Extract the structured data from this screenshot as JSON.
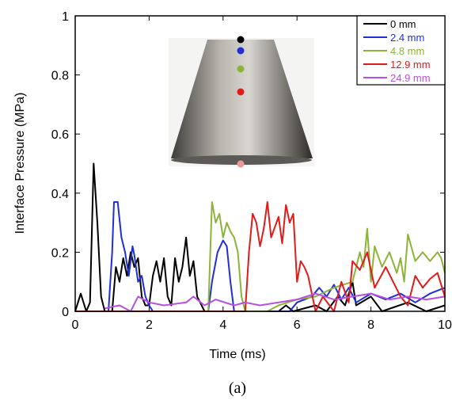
{
  "chart_data": {
    "type": "line",
    "x_label": "Time (ms)",
    "y_label": "Interface Pressure (MPa)",
    "caption": "(a)",
    "xlim": [
      0,
      10
    ],
    "xticks": [
      0,
      2,
      4,
      6,
      8,
      10
    ],
    "ylim": [
      0,
      1
    ],
    "yticks": [
      0,
      0.2,
      0.4,
      0.6,
      0.8,
      1
    ],
    "legend": "upper right",
    "series": [
      {
        "name": "0 mm",
        "color": "#000000",
        "x": [
          0,
          0.15,
          0.3,
          0.4,
          0.5,
          0.6,
          0.7,
          0.8,
          1.0,
          1.1,
          1.2,
          1.3,
          1.4,
          1.5,
          1.6,
          1.7,
          1.8,
          1.9,
          2.0,
          2.1,
          2.2,
          2.3,
          2.4,
          2.5,
          2.6,
          2.7,
          2.8,
          2.9,
          3.0,
          3.1,
          3.2,
          3.3,
          3.5,
          5.5,
          5.7,
          5.9,
          6.5,
          6.8,
          7.1,
          7.3,
          7.5,
          7.6,
          8.0,
          8.3,
          9.0,
          9.5,
          10
        ],
        "values": [
          0,
          0.06,
          0,
          0.03,
          0.5,
          0.3,
          0.05,
          0,
          0,
          0.15,
          0.1,
          0.18,
          0.12,
          0.2,
          0.15,
          0.18,
          0.05,
          0.02,
          0.02,
          0.12,
          0.17,
          0.1,
          0.18,
          0.05,
          0.02,
          0.18,
          0.1,
          0.15,
          0.25,
          0.12,
          0.17,
          0.05,
          0,
          0,
          0.02,
          0,
          0.02,
          0,
          0.05,
          0.02,
          0.1,
          0.02,
          0.05,
          0,
          0.03,
          0,
          0.02
        ]
      },
      {
        "name": "2.4 mm",
        "color": "#1f2fd6",
        "x": [
          0,
          0.9,
          1.0,
          1.05,
          1.15,
          1.25,
          1.35,
          1.45,
          1.55,
          1.6,
          1.7,
          1.8,
          1.9,
          2.0,
          2.1,
          3.6,
          3.7,
          3.85,
          4.0,
          4.1,
          4.2,
          4.3,
          5.8,
          6.0,
          6.4,
          6.6,
          6.8,
          7.0,
          7.2,
          7.4,
          7.6,
          8.0,
          8.4,
          8.8,
          9.2,
          9.6,
          10
        ],
        "values": [
          0,
          0,
          0.2,
          0.37,
          0.37,
          0.25,
          0.2,
          0.12,
          0.22,
          0.19,
          0.1,
          0.12,
          0.05,
          0.02,
          0,
          0,
          0.1,
          0.2,
          0.24,
          0.22,
          0.1,
          0,
          0,
          0.03,
          0.05,
          0.08,
          0.05,
          0.09,
          0.04,
          0.08,
          0.03,
          0.06,
          0.04,
          0.06,
          0.03,
          0.06,
          0.08
        ]
      },
      {
        "name": "4.8 mm",
        "color": "#8db33a",
        "x": [
          0,
          3.6,
          3.7,
          3.8,
          3.9,
          4.0,
          4.1,
          4.2,
          4.3,
          4.4,
          4.5,
          4.6,
          5.2,
          5.5,
          6.0,
          6.5,
          7.0,
          7.5,
          7.7,
          7.8,
          7.9,
          8.0,
          8.1,
          8.3,
          8.5,
          8.7,
          8.8,
          8.9,
          9.0,
          9.2,
          9.4,
          9.6,
          9.8,
          9.9,
          10
        ],
        "values": [
          0,
          0,
          0.37,
          0.3,
          0.33,
          0.25,
          0.3,
          0.27,
          0.25,
          0.2,
          0.05,
          0,
          0,
          0.02,
          0.04,
          0.05,
          0.08,
          0.1,
          0.2,
          0.15,
          0.28,
          0.1,
          0.22,
          0.15,
          0.2,
          0.13,
          0.18,
          0.1,
          0.26,
          0.17,
          0.2,
          0.17,
          0.2,
          0.18,
          0.13
        ]
      },
      {
        "name": "12.9 mm",
        "color": "#e01b1b",
        "x": [
          0,
          4.6,
          4.7,
          4.8,
          4.9,
          5.0,
          5.1,
          5.2,
          5.3,
          5.5,
          5.6,
          5.7,
          5.8,
          5.9,
          6.0,
          6.1,
          6.2,
          6.3,
          6.5,
          6.7,
          7.0,
          7.2,
          7.4,
          7.5,
          7.7,
          7.9,
          8.1,
          8.4,
          8.6,
          8.8,
          9.0,
          9.2,
          9.4,
          9.6,
          9.8,
          10
        ],
        "values": [
          0,
          0,
          0.2,
          0.33,
          0.3,
          0.22,
          0.28,
          0.37,
          0.25,
          0.32,
          0.23,
          0.36,
          0.3,
          0.33,
          0.1,
          0.17,
          0.15,
          0.12,
          0,
          0.05,
          0,
          0.1,
          0.03,
          0.17,
          0.14,
          0.2,
          0.08,
          0.15,
          0.1,
          0.05,
          0.02,
          0.12,
          0.08,
          0.11,
          0.13,
          0.05
        ]
      },
      {
        "name": "24.9 mm",
        "color": "#b84fe0",
        "x": [
          0.8,
          1.2,
          1.5,
          1.7,
          2.0,
          2.4,
          3.0,
          3.2,
          3.5,
          3.8,
          4.3,
          4.6,
          5.0,
          5.5,
          6.0,
          6.5,
          7.0,
          7.5,
          8.0,
          8.5,
          9.0,
          9.5,
          10
        ],
        "values": [
          0.01,
          0.02,
          0,
          0.05,
          0.03,
          0.02,
          0.03,
          0.05,
          0.02,
          0.04,
          0.02,
          0.03,
          0.02,
          0.03,
          0.04,
          0.06,
          0.04,
          0.05,
          0.06,
          0.04,
          0.05,
          0.04,
          0.05
        ]
      }
    ]
  }
}
